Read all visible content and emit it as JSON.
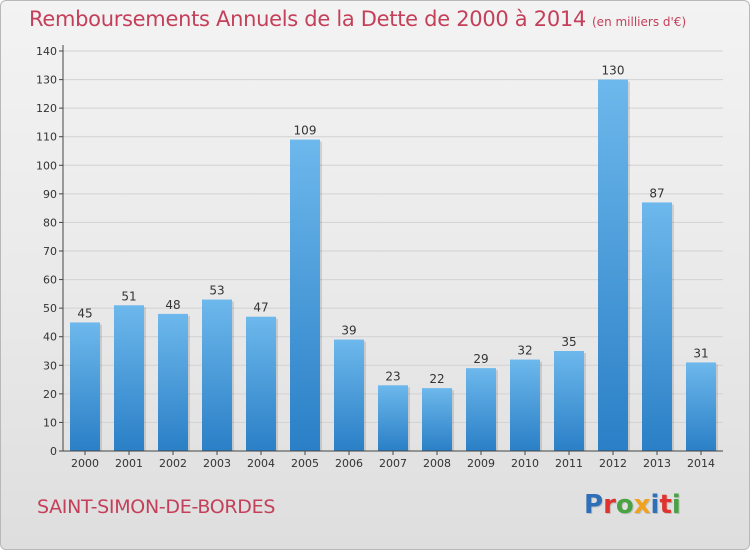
{
  "header": {
    "title": "Remboursements Annuels de la Dette de 2000 à 2014",
    "unit_note": "(en milliers d'€)"
  },
  "footer": {
    "commune": "SAINT-SIMON-DE-BORDES",
    "logo_text": "Proxiti"
  },
  "colors": {
    "title": "#c4405a",
    "bar_top": "#6db8ec",
    "bar_bottom": "#2a7fc6",
    "axis": "#333333",
    "grid": "#d0d0d0"
  },
  "chart_data": {
    "type": "bar",
    "title": "Remboursements Annuels de la Dette de 2000 à 2014",
    "subtitle": "(en milliers d'€)",
    "categories": [
      "2000",
      "2001",
      "2002",
      "2003",
      "2004",
      "2005",
      "2006",
      "2007",
      "2008",
      "2009",
      "2010",
      "2011",
      "2012",
      "2013",
      "2014"
    ],
    "values": [
      45,
      51,
      48,
      53,
      47,
      109,
      39,
      23,
      22,
      29,
      32,
      35,
      130,
      87,
      31
    ],
    "ylim": [
      0,
      140
    ],
    "yticks": [
      0,
      10,
      20,
      30,
      40,
      50,
      60,
      70,
      80,
      90,
      100,
      110,
      120,
      130,
      140
    ],
    "xlabel": "",
    "ylabel": "",
    "grid": true,
    "legend": "none"
  }
}
